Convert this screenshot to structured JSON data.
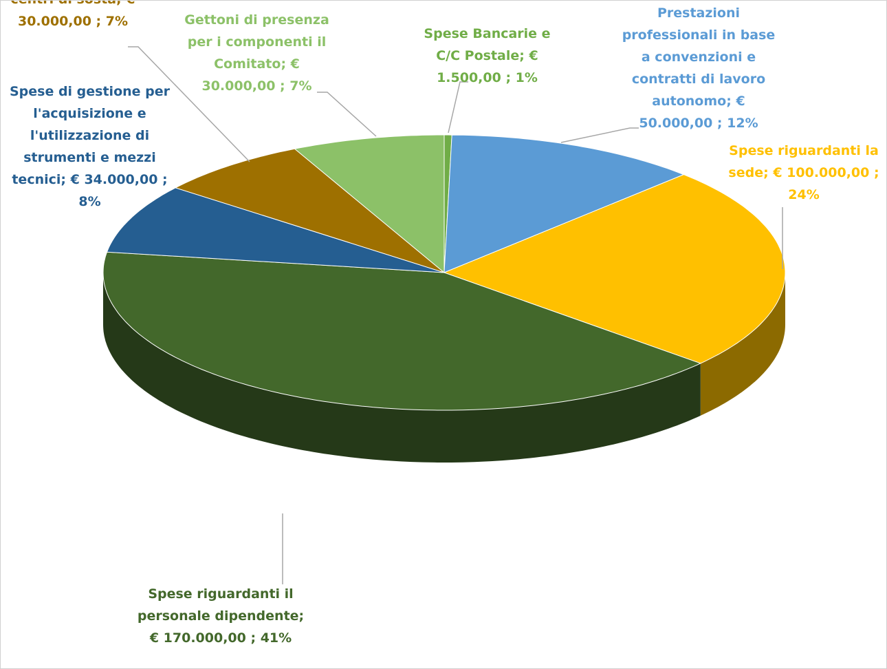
{
  "chart_data": {
    "type": "pie3d",
    "categories": [
      "Spese Bancarie e C/C Postale",
      "Prestazioni professionali in base a convenzioni e contratti di lavoro autonomo",
      "Spese riguardanti la sede",
      "Spese riguardanti il personale dipendente",
      "Spese di gestione per l'acquisizione e l'utilizzazione di strumenti e mezzi tecnici",
      "centri di sosta",
      "Gettoni di presenza per i componenti il Comitato"
    ],
    "values": [
      1500,
      50000,
      100000,
      170000,
      34000,
      30000,
      30000
    ],
    "value_labels": [
      "€ 1.500,00 ; 1%",
      "€ 50.000,00 ; 12%",
      "€ 100.000,00 ; 24%",
      "€ 170.000,00 ; 41%",
      "€ 34.000,00 ; 8%",
      "€ 30.000,00 ; 7%",
      "€ 30.000,00 ; 7%"
    ],
    "label_separator": ";",
    "colors": [
      "#70ad47",
      "#5b9bd5",
      "#ffc000",
      "#43682b",
      "#255e91",
      "#9e7000",
      "#8cc168"
    ],
    "label_colors": [
      "#70ad47",
      "#5b9bd5",
      "#ffc000",
      "#43682b",
      "#255e91",
      "#9e7000",
      "#8cc168"
    ]
  }
}
